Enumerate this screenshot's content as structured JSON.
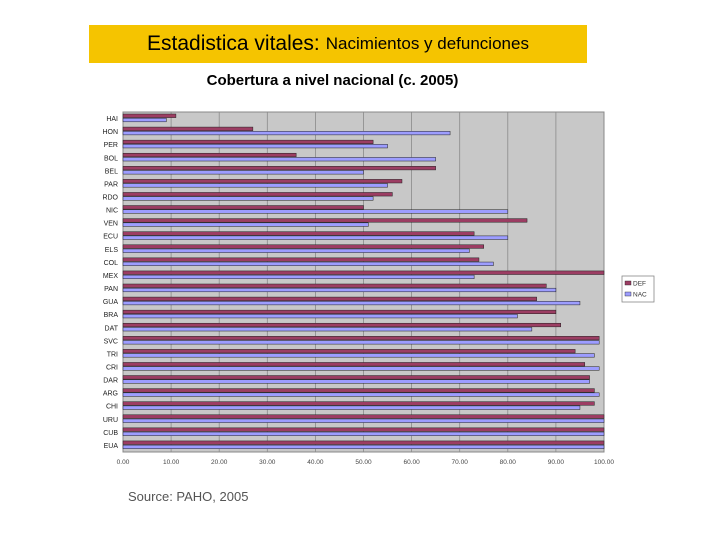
{
  "header": {
    "title_main": "Estadistica vitales:",
    "title_rest": "Nacimientos y defunciones",
    "subtitle": "Cobertura a nivel nacional (c. 2005)"
  },
  "footer": {
    "source": "Source: PAHO, 2005"
  },
  "colors": {
    "def": "#9c3d63",
    "nac": "#9d9dff",
    "plot_bg": "#c8c8c8",
    "title_bg": "#f5c400"
  },
  "chart_data": {
    "type": "bar",
    "orientation": "horizontal",
    "title": "Cobertura a nivel nacional (c. 2005)",
    "categories": [
      "HAI",
      "HON",
      "PER",
      "BOL",
      "BEL",
      "PAR",
      "RDO",
      "NIC",
      "VEN",
      "ECU",
      "ELS",
      "COL",
      "MEX",
      "PAN",
      "GUA",
      "BRA",
      "DAT",
      "SVC",
      "TRI",
      "CRI",
      "DAR",
      "ARG",
      "CHI",
      "URU",
      "CUB",
      "EUA"
    ],
    "series": [
      {
        "name": "DEF",
        "color": "#9c3d63",
        "values": [
          11,
          27,
          52,
          36,
          65,
          58,
          56,
          50,
          84,
          73,
          75,
          74,
          100,
          88,
          86,
          90,
          91,
          99,
          94,
          96,
          97,
          98,
          98,
          100,
          100,
          100
        ]
      },
      {
        "name": "NAC",
        "color": "#9d9dff",
        "values": [
          9,
          68,
          55,
          65,
          50,
          55,
          52,
          80,
          51,
          80,
          72,
          77,
          73,
          90,
          95,
          82,
          85,
          99,
          98,
          99,
          97,
          99,
          95,
          100,
          100,
          100
        ]
      }
    ],
    "xticks": [
      "0.00",
      "10.00",
      "20.00",
      "30.00",
      "40.00",
      "50.00",
      "60.00",
      "70.00",
      "80.00",
      "90.00",
      "100.00"
    ],
    "xlim": [
      0,
      100
    ],
    "legend": [
      "DEF",
      "NAC"
    ],
    "legend_position": "right",
    "grid": "vertical"
  }
}
